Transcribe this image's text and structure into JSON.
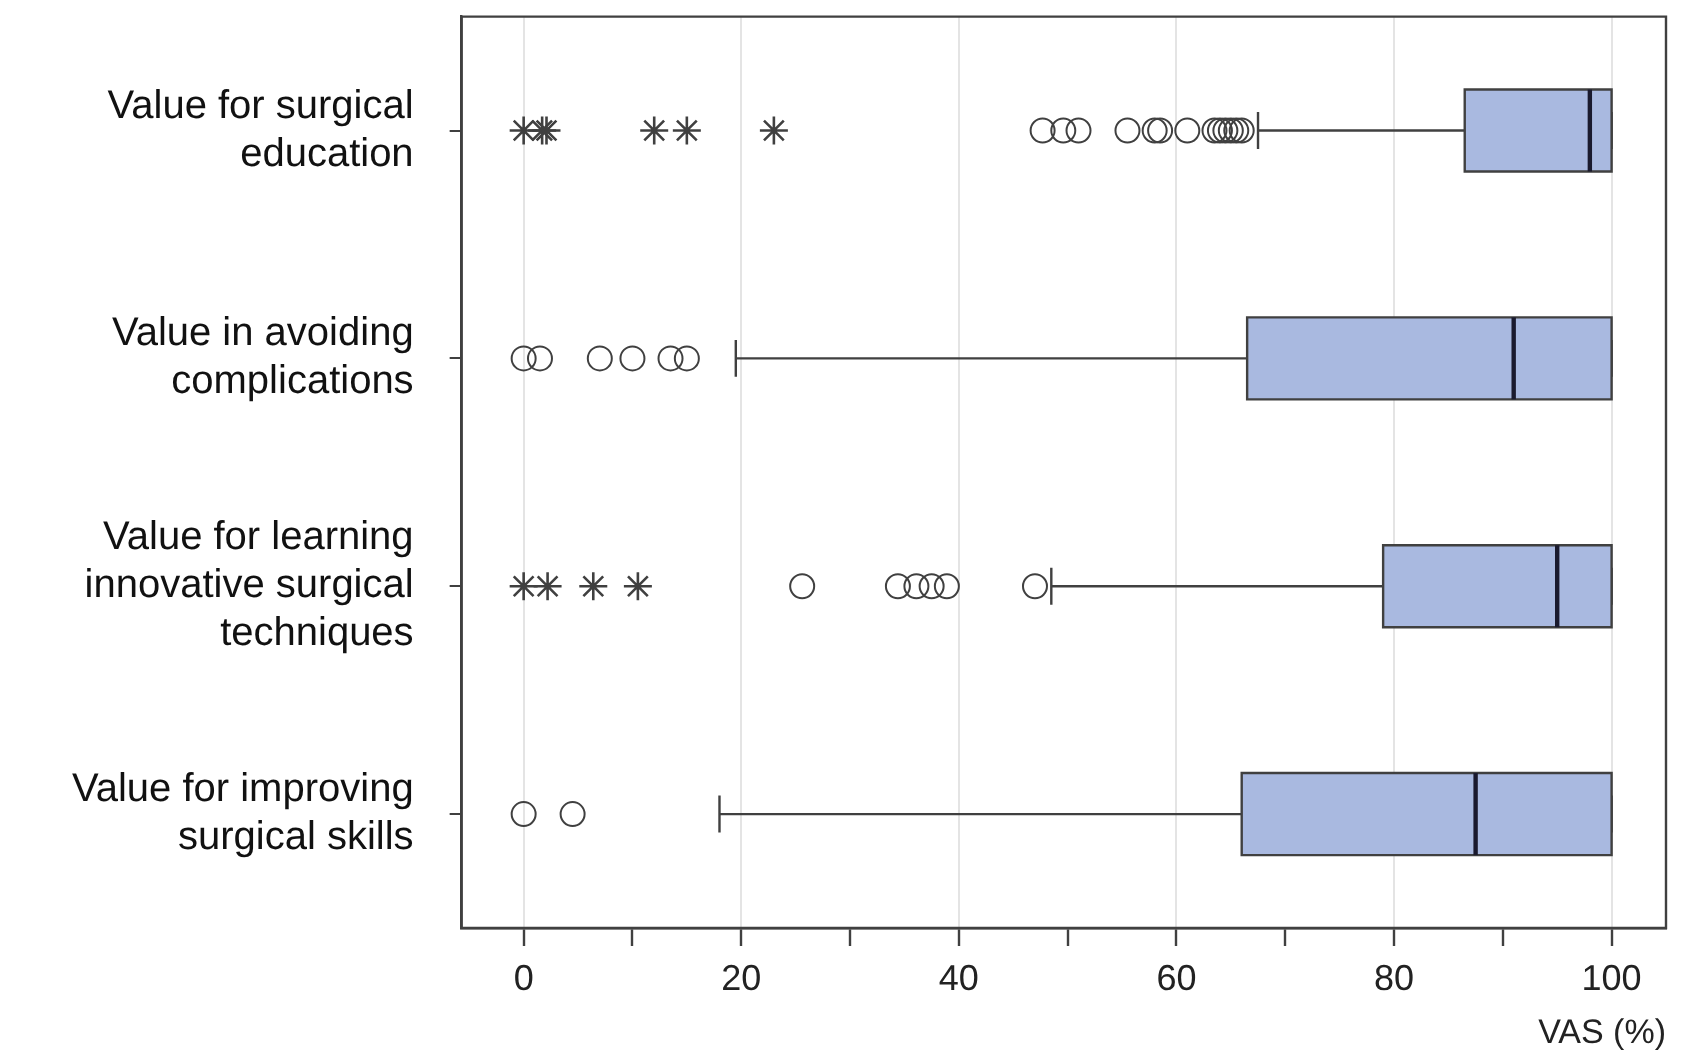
{
  "chart_data": {
    "type": "box",
    "orientation": "horizontal",
    "xlabel": "VAS (%)",
    "categories": [
      "Value for surgical education",
      "Value in avoiding complications",
      "Value for learning innovative surgical techniques",
      "Value for improving surgical skills"
    ],
    "xlim": [
      -5.7,
      105
    ],
    "xticks": [
      0,
      {
        "value": 10,
        "label": null
      },
      20,
      {
        "value": 30,
        "label": null
      },
      40,
      {
        "value": 50,
        "label": null
      },
      60,
      {
        "value": 70,
        "label": null
      },
      80,
      {
        "value": 90,
        "label": null
      },
      100
    ],
    "grid": "x",
    "legend": false,
    "series": [
      {
        "type": "box",
        "color": "#a9b9e0",
        "boxes": [
          {
            "low": 67.5,
            "q1": 86.5,
            "median": 98,
            "q3": 100,
            "high": 100,
            "outliers": [
              47.7,
              49.6,
              51,
              55.5,
              58,
              58.5,
              61,
              63.5,
              64,
              64.5,
              65,
              65.5,
              66
            ]
          },
          {
            "low": 19.5,
            "q1": 66.5,
            "median": 91,
            "q3": 100,
            "high": 100,
            "outliers": [
              0,
              1.5,
              7,
              10,
              13.5,
              15
            ]
          },
          {
            "low": 48.5,
            "q1": 79,
            "median": 95,
            "q3": 100,
            "high": 100,
            "outliers": [
              25.6,
              34.4,
              36.1,
              37.5,
              38.9,
              47
            ]
          },
          {
            "low": 18,
            "q1": 66,
            "median": 87.5,
            "q3": 100,
            "high": 100,
            "outliers": [
              0,
              4.5
            ]
          }
        ]
      },
      {
        "type": "scatter",
        "marker": "cross",
        "color": "#404040",
        "x": [
          "Value for surgical education",
          "Value for surgical education",
          "Value for surgical education",
          "Value for surgical education",
          "Value for surgical education",
          "Value for surgical education",
          "Value for learning innovative surgical techniques",
          "Value for learning innovative surgical techniques",
          "Value for learning innovative surgical techniques",
          "Value for learning innovative surgical techniques"
        ],
        "values": [
          0,
          1.7,
          2.1,
          12,
          15,
          23,
          0,
          2.2,
          6.4,
          10.5
        ]
      }
    ]
  }
}
